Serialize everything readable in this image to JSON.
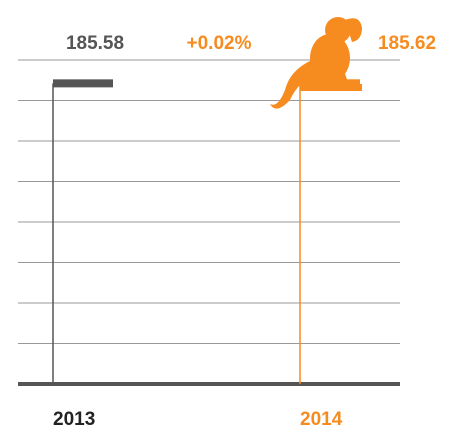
{
  "chart_data": {
    "type": "marker",
    "categories": [
      "2013",
      "2014"
    ],
    "values": [
      185.58,
      185.62
    ],
    "colors": [
      "#555555",
      "#f68b1f"
    ],
    "annotation": "+0.02%",
    "ylim": [
      0,
      200
    ],
    "yticks": [
      0,
      25,
      50,
      75,
      100,
      125,
      150,
      175,
      200
    ],
    "grid": true
  }
}
